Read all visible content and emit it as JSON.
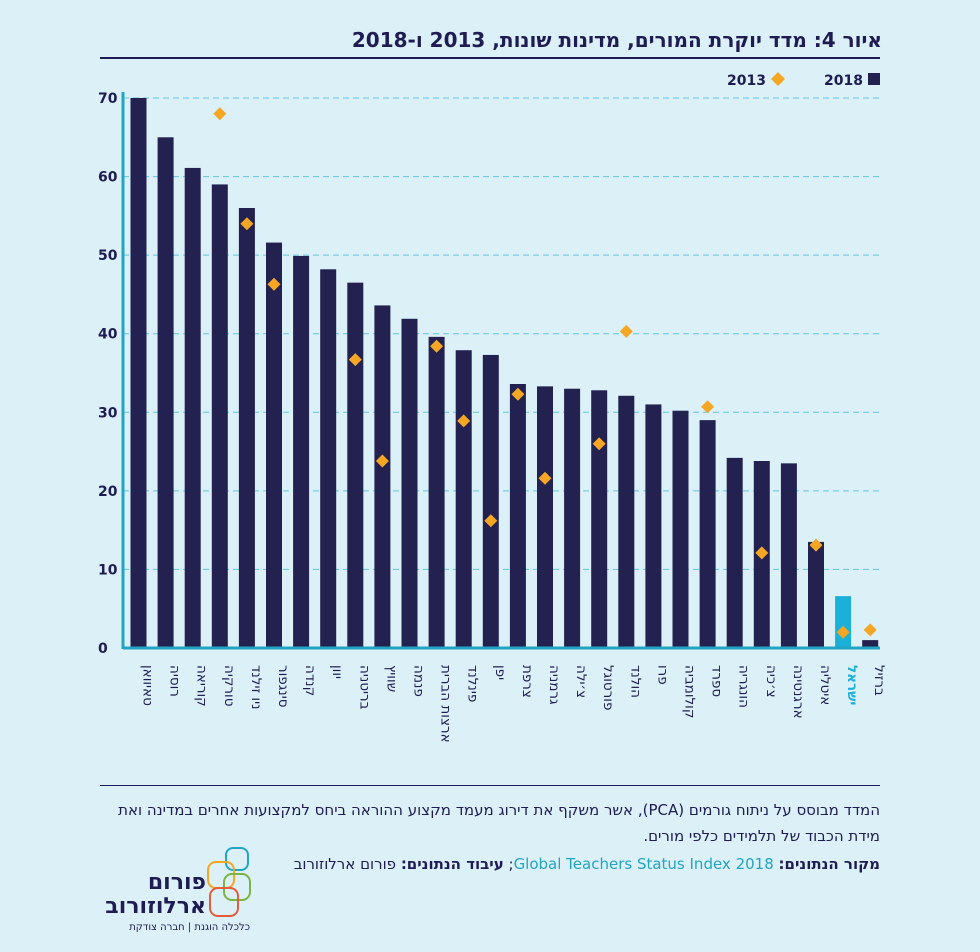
{
  "title": "איור 4: מדד יוקרת המורים, מדינות שונות, 2013 ו-2018",
  "chart_data": {
    "type": "bar",
    "categories": [
      "טאיוואן",
      "רוסיה",
      "קוריאה",
      "טורקיה",
      "ניו זילנד",
      "סינגפור",
      "קנדה",
      "יוון",
      "בריטניה",
      "שוויץ",
      "פנמה",
      "ארצות הברית",
      "פינלנד",
      "יפן",
      "צרפת",
      "גרמניה",
      "צ׳ילה",
      "פורטוגל",
      "הולנד",
      "פרו",
      "קולומביה",
      "ספרד",
      "הונגריה",
      "צ׳כיה",
      "ארגנטינה",
      "איטליה",
      "ישראל",
      "ברזיל"
    ],
    "highlight_category": "ישראל",
    "series": [
      {
        "name": "2018",
        "type": "bar",
        "color": "#232150",
        "highlight_color": "#1ab0d8",
        "values": [
          70,
          65,
          61.1,
          59,
          56,
          51.6,
          49.9,
          48.2,
          46.5,
          43.6,
          41.9,
          39.6,
          37.9,
          37.3,
          33.6,
          33.3,
          33,
          32.8,
          32.1,
          31,
          30.2,
          29,
          24.2,
          23.8,
          23.5,
          13.5,
          6.6,
          1
        ]
      },
      {
        "name": "2013",
        "type": "marker",
        "color": "#f5a623",
        "values": [
          null,
          null,
          null,
          68,
          54,
          46.3,
          null,
          null,
          36.7,
          23.8,
          null,
          38.4,
          28.9,
          16.2,
          32.3,
          21.6,
          null,
          26,
          40.3,
          null,
          null,
          30.7,
          null,
          12.1,
          null,
          13.1,
          2,
          2.3
        ]
      }
    ],
    "yticks": [
      0,
      10,
      20,
      30,
      40,
      50,
      60,
      70
    ],
    "ylim": [
      0,
      70
    ],
    "legend": [
      "2018",
      "2013"
    ],
    "legend_position": "top-right",
    "grid": true,
    "xlabel": "",
    "ylabel": ""
  },
  "footer": {
    "description": "המדד מבוסס על ניתוח גורמים (PCA), אשר משקף את דירוג מעמד מקצוע ההוראה ביחס למקצועות אחרים במדינה ואת מידת הכבוד של תלמידים כלפי מורים.",
    "source_label": "מקור הנתונים:",
    "source_name": "Global Teachers Status Index 2018",
    "separator": ";",
    "processing_label": "עיבוד הנתונים:",
    "processing_name": "פורום ארלוזורוב"
  },
  "logo": {
    "line1": "פורום",
    "line2": "ארלוזורוב",
    "tagline": "כלכלה הוגנת | חברה צודקת"
  }
}
